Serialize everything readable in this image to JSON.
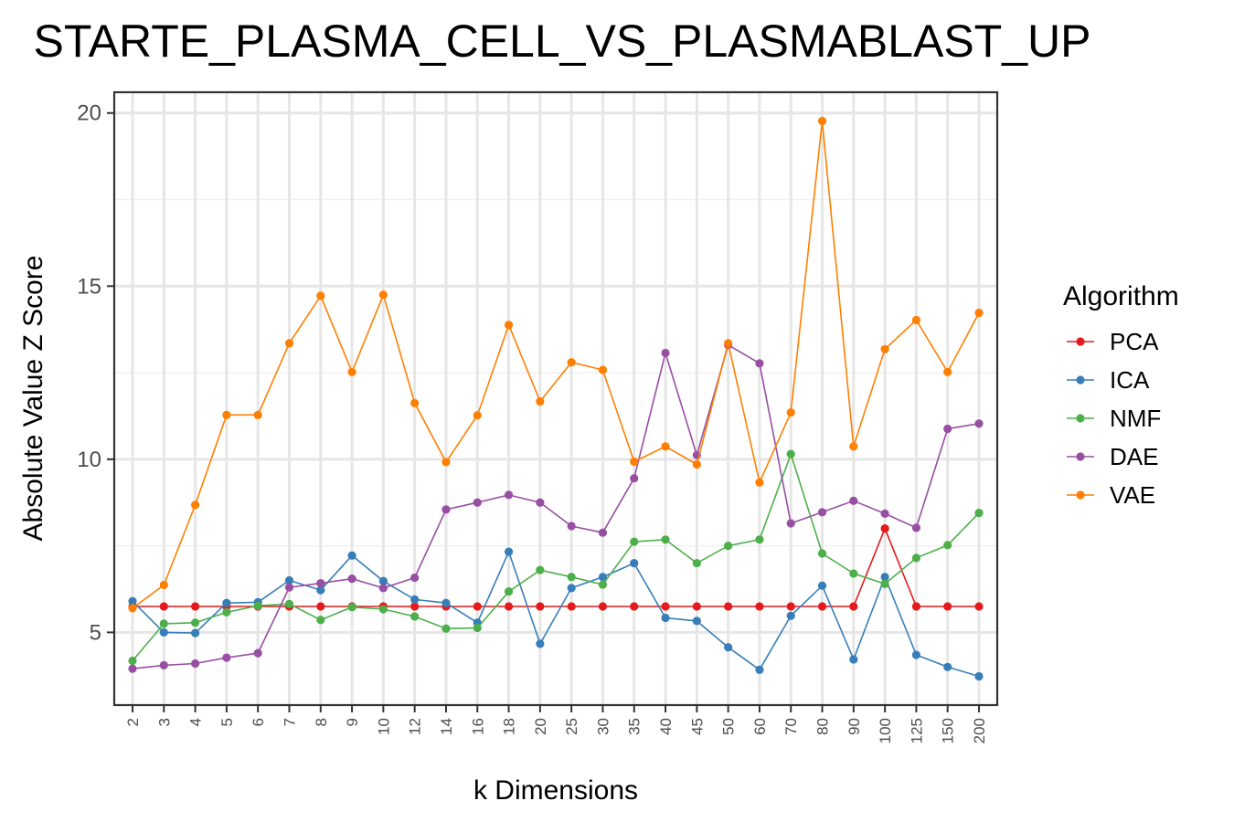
{
  "chart_data": {
    "type": "line",
    "title": "STARTE_PLASMA_CELL_VS_PLASMABLAST_UP",
    "xlabel": "k Dimensions",
    "ylabel": "Absolute Value Z Score",
    "ylim": [
      2.9,
      20.6
    ],
    "yticks": [
      5,
      10,
      15,
      20
    ],
    "grid": true,
    "legend_title": "Algorithm",
    "legend_position": "right",
    "categories": [
      "2",
      "3",
      "4",
      "5",
      "6",
      "7",
      "8",
      "9",
      "10",
      "12",
      "14",
      "16",
      "18",
      "20",
      "25",
      "30",
      "35",
      "40",
      "45",
      "50",
      "60",
      "70",
      "80",
      "90",
      "100",
      "125",
      "150",
      "200"
    ],
    "series": [
      {
        "name": "PCA",
        "color": "#e41a1c",
        "values": [
          5.75,
          5.75,
          5.75,
          5.75,
          5.75,
          5.75,
          5.75,
          5.75,
          5.75,
          5.75,
          5.75,
          5.75,
          5.75,
          5.75,
          5.75,
          5.75,
          5.75,
          5.75,
          5.75,
          5.75,
          5.75,
          5.75,
          5.75,
          5.75,
          8.0,
          5.75,
          5.75,
          5.75
        ]
      },
      {
        "name": "ICA",
        "color": "#377eb8",
        "values": [
          5.9,
          5.0,
          4.98,
          5.85,
          5.87,
          6.5,
          6.22,
          7.22,
          6.48,
          5.95,
          5.85,
          5.28,
          7.33,
          4.67,
          6.28,
          6.6,
          7.0,
          5.42,
          5.33,
          4.57,
          3.92,
          5.48,
          6.35,
          4.22,
          6.6,
          4.35,
          4.0,
          3.73
        ]
      },
      {
        "name": "NMF",
        "color": "#4daf4a",
        "values": [
          4.18,
          5.25,
          5.28,
          5.58,
          5.77,
          5.82,
          5.36,
          5.73,
          5.67,
          5.46,
          5.11,
          5.13,
          6.18,
          6.8,
          6.6,
          6.38,
          7.62,
          7.68,
          7.0,
          7.5,
          7.68,
          10.15,
          7.28,
          6.7,
          6.4,
          7.15,
          7.52,
          8.45
        ]
      },
      {
        "name": "DAE",
        "color": "#984ea3",
        "values": [
          3.95,
          4.05,
          4.1,
          4.27,
          4.4,
          6.3,
          6.42,
          6.55,
          6.28,
          6.58,
          8.55,
          8.75,
          8.97,
          8.75,
          8.07,
          7.88,
          9.45,
          13.07,
          10.12,
          13.3,
          12.77,
          8.15,
          8.47,
          8.8,
          8.43,
          8.02,
          10.88,
          11.03
        ]
      },
      {
        "name": "VAE",
        "color": "#ff7f00",
        "values": [
          5.7,
          6.37,
          8.68,
          11.28,
          11.28,
          13.35,
          14.72,
          12.52,
          14.75,
          11.62,
          9.92,
          11.27,
          13.88,
          11.67,
          12.8,
          12.58,
          9.93,
          10.37,
          9.85,
          13.35,
          9.33,
          11.35,
          19.77,
          10.37,
          13.18,
          14.02,
          12.52,
          14.23
        ]
      }
    ]
  }
}
